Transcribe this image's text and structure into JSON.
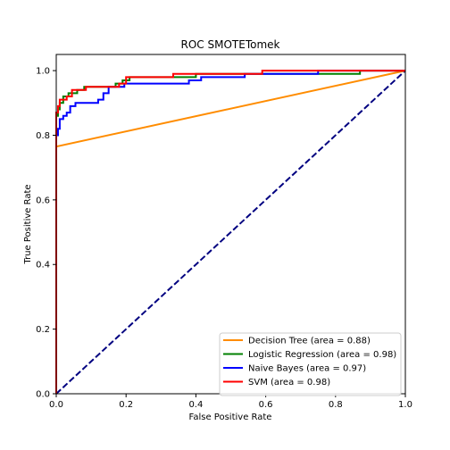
{
  "chart_data": {
    "type": "line",
    "title": "ROC SMOTETomek",
    "xlabel": "False Positive Rate",
    "ylabel": "True Positive Rate",
    "xlim": [
      0.0,
      1.0
    ],
    "ylim": [
      0.0,
      1.05
    ],
    "xticks": [
      "0.0",
      "0.2",
      "0.4",
      "0.6",
      "0.8",
      "1.0"
    ],
    "yticks": [
      "0.0",
      "0.2",
      "0.4",
      "0.6",
      "0.8",
      "1.0"
    ],
    "grid": false,
    "legend_position": "lower right",
    "series": [
      {
        "name": "Decision Tree (area = 0.88)",
        "color": "#ff8c00",
        "dash": false,
        "x": [
          0.0,
          0.0,
          1.0
        ],
        "y": [
          0.0,
          0.765,
          1.0
        ]
      },
      {
        "name": "Logistic Regression (area = 0.98)",
        "color": "#008000",
        "dash": false,
        "x": [
          0.0,
          0.0,
          0.005,
          0.005,
          0.01,
          0.01,
          0.02,
          0.02,
          0.035,
          0.035,
          0.06,
          0.06,
          0.08,
          0.08,
          0.17,
          0.17,
          0.19,
          0.19,
          0.21,
          0.21,
          0.4,
          0.4,
          0.87,
          0.87,
          1.0
        ],
        "y": [
          0.0,
          0.86,
          0.86,
          0.88,
          0.88,
          0.9,
          0.9,
          0.92,
          0.92,
          0.93,
          0.93,
          0.94,
          0.94,
          0.95,
          0.95,
          0.96,
          0.96,
          0.97,
          0.97,
          0.98,
          0.98,
          0.99,
          0.99,
          1.0,
          1.0
        ]
      },
      {
        "name": "Naive Bayes (area = 0.97)",
        "color": "#0000ff",
        "dash": false,
        "x": [
          0.0,
          0.0,
          0.005,
          0.005,
          0.01,
          0.01,
          0.02,
          0.02,
          0.03,
          0.03,
          0.04,
          0.04,
          0.055,
          0.055,
          0.12,
          0.12,
          0.135,
          0.135,
          0.15,
          0.15,
          0.195,
          0.195,
          0.38,
          0.38,
          0.415,
          0.415,
          0.54,
          0.54,
          0.75,
          0.75,
          1.0
        ],
        "y": [
          0.0,
          0.8,
          0.8,
          0.82,
          0.82,
          0.85,
          0.85,
          0.86,
          0.86,
          0.87,
          0.87,
          0.89,
          0.89,
          0.9,
          0.9,
          0.91,
          0.91,
          0.93,
          0.93,
          0.95,
          0.95,
          0.96,
          0.96,
          0.97,
          0.97,
          0.98,
          0.98,
          0.99,
          0.99,
          1.0,
          1.0
        ]
      },
      {
        "name": "SVM (area = 0.98)",
        "color": "#ff0000",
        "dash": false,
        "x": [
          0.0,
          0.0,
          0.005,
          0.005,
          0.01,
          0.01,
          0.03,
          0.03,
          0.045,
          0.045,
          0.085,
          0.085,
          0.18,
          0.18,
          0.2,
          0.2,
          0.335,
          0.335,
          0.59,
          0.59,
          1.0
        ],
        "y": [
          0.0,
          0.87,
          0.87,
          0.89,
          0.89,
          0.91,
          0.91,
          0.92,
          0.92,
          0.94,
          0.94,
          0.95,
          0.95,
          0.96,
          0.96,
          0.98,
          0.98,
          0.99,
          0.99,
          1.0,
          1.0
        ]
      },
      {
        "name": "",
        "color": "#000080",
        "dash": true,
        "x": [
          0.0,
          1.0
        ],
        "y": [
          0.0,
          1.0
        ]
      }
    ]
  }
}
